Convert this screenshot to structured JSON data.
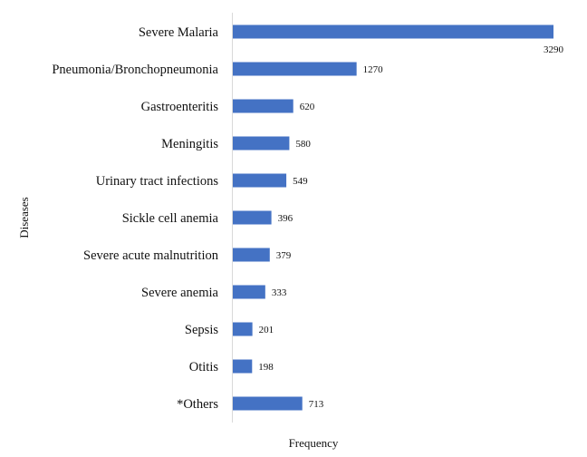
{
  "chart_data": {
    "type": "bar",
    "orientation": "horizontal",
    "categories": [
      "Severe Malaria",
      "Pneumonia/Bronchopneumonia",
      "Gastroenteritis",
      "Meningitis",
      "Urinary tract infections",
      "Sickle cell anemia",
      "Severe acute malnutrition",
      "Severe anemia",
      "Sepsis",
      "Otitis",
      "*Others"
    ],
    "values": [
      3290,
      1270,
      620,
      580,
      549,
      396,
      379,
      333,
      201,
      198,
      713
    ],
    "title": "",
    "xlabel": "Frequency",
    "ylabel": "Diseases",
    "xlim": [
      0,
      3290
    ],
    "grid": false,
    "legend": "none",
    "bar_color": "#4472C4",
    "axis_color": "#d9d9d9"
  }
}
